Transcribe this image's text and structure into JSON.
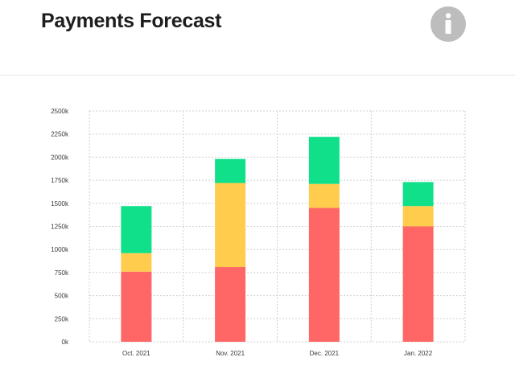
{
  "header": {
    "title": "Payments Forecast",
    "info_icon": "info-icon"
  },
  "colors": {
    "red": "#ff6666",
    "yellow": "#ffcc4d",
    "green": "#10e08a",
    "grid": "#cfcfcf",
    "info_bg": "#bdbdbd"
  },
  "chart_data": {
    "type": "bar",
    "stacked": true,
    "title": "Payments Forecast",
    "xlabel": "",
    "ylabel": "",
    "ylim": [
      0,
      2500
    ],
    "grid": true,
    "legend": "none",
    "categories": [
      "Oct. 2021",
      "Nov. 2021",
      "Dec. 2021",
      "Jan. 2022"
    ],
    "y_ticks": [
      0,
      250,
      500,
      750,
      1000,
      1250,
      1500,
      1750,
      2000,
      2250,
      2500
    ],
    "y_tick_labels": [
      "0k",
      "250k",
      "500k",
      "750k",
      "1000k",
      "1250k",
      "1500k",
      "1750k",
      "2000k",
      "2250k",
      "2500k"
    ],
    "series": [
      {
        "name": "red",
        "color": "#ff6666",
        "values": [
          760,
          810,
          1450,
          1250
        ]
      },
      {
        "name": "yellow",
        "color": "#ffcc4d",
        "values": [
          200,
          910,
          260,
          220
        ]
      },
      {
        "name": "green",
        "color": "#10e08a",
        "values": [
          510,
          260,
          510,
          260
        ]
      }
    ]
  }
}
